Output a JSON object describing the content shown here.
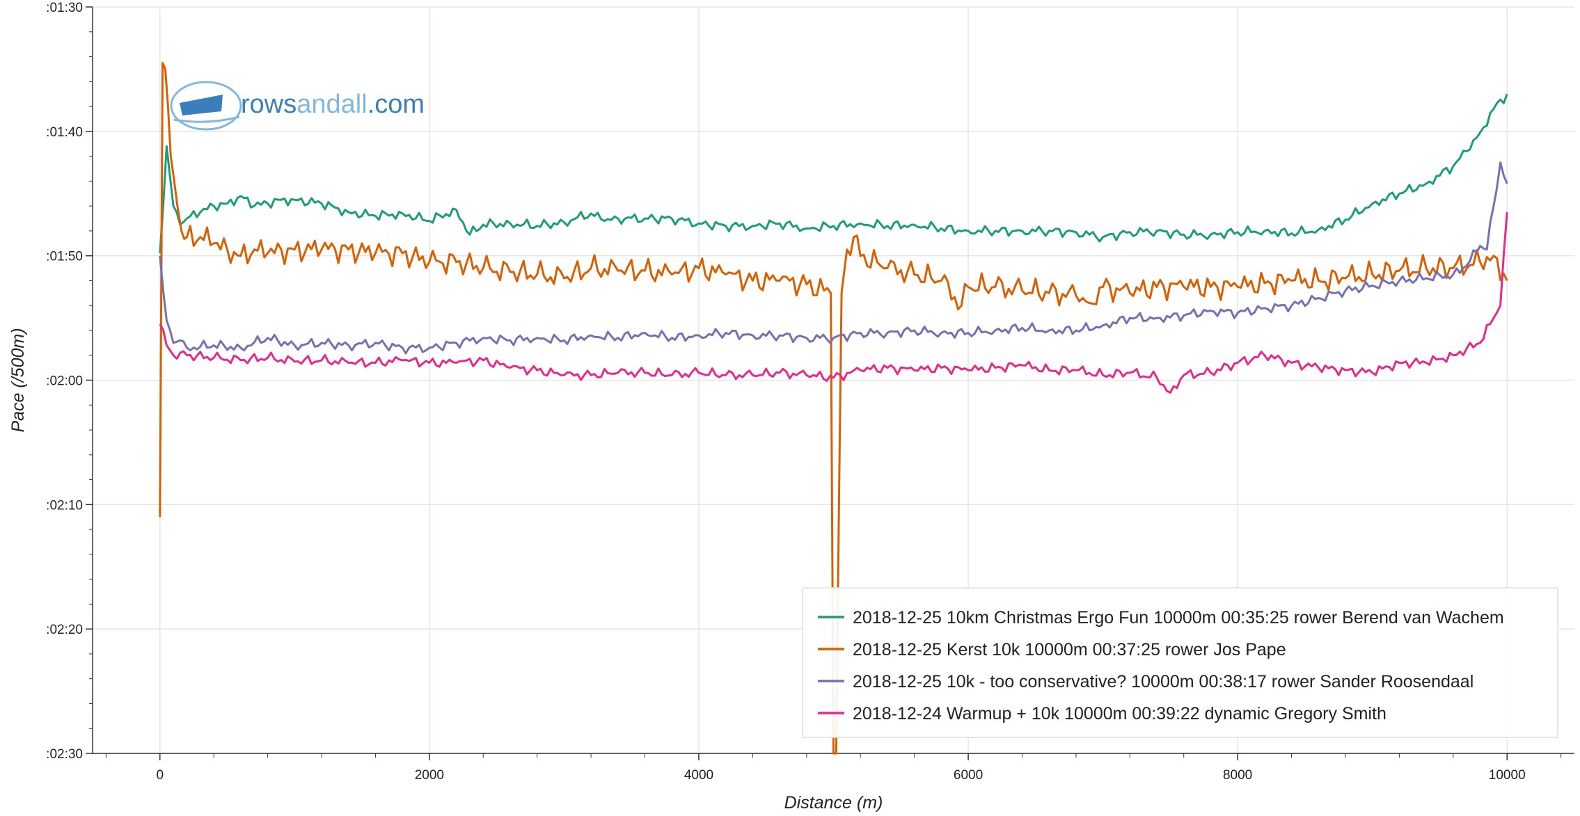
{
  "chart_data": {
    "type": "line",
    "xlabel": "Distance (m)",
    "ylabel": "Pace (/500m)",
    "xlim": [
      -500,
      10500
    ],
    "xticks": [
      0,
      2000,
      4000,
      6000,
      8000,
      10000
    ],
    "ylim_seconds": [
      90,
      150
    ],
    "y_inverted": true,
    "yticks": [
      {
        "seconds": 90,
        "label": ":01:30"
      },
      {
        "seconds": 100,
        "label": ":01:40"
      },
      {
        "seconds": 110,
        "label": ":01:50"
      },
      {
        "seconds": 120,
        "label": ":02:00"
      },
      {
        "seconds": 130,
        "label": ":02:10"
      },
      {
        "seconds": 140,
        "label": ":02:20"
      },
      {
        "seconds": 150,
        "label": ":02:30"
      }
    ],
    "grid": true,
    "legend_position": "bottom-right",
    "series": [
      {
        "name": "2018-12-25 10km Christmas Ergo Fun 10000m 00:35:25 rower Berend van Wachem",
        "color": "#1b9e77",
        "x": [
          0,
          50,
          100,
          150,
          200,
          300,
          400,
          500,
          600,
          700,
          800,
          900,
          1000,
          1200,
          1400,
          1600,
          1800,
          2000,
          2200,
          2300,
          2400,
          2600,
          2800,
          3000,
          3200,
          3300,
          3400,
          3600,
          3800,
          4000,
          4200,
          4400,
          4600,
          4800,
          5000,
          5200,
          5400,
          5600,
          5800,
          6000,
          6200,
          6400,
          6600,
          6800,
          7000,
          7200,
          7400,
          7600,
          7800,
          8000,
          8200,
          8400,
          8600,
          8800,
          9000,
          9200,
          9400,
          9600,
          9700,
          9800,
          9900,
          10000
        ],
        "y": [
          109.8,
          101.2,
          106.0,
          107.5,
          107.0,
          106.5,
          106.0,
          105.8,
          105.2,
          106.0,
          105.8,
          105.5,
          105.5,
          105.8,
          106.5,
          106.8,
          106.6,
          107.2,
          106.3,
          108.3,
          107.5,
          107.4,
          107.6,
          107.3,
          106.6,
          107.2,
          107.0,
          107.0,
          107.0,
          107.4,
          107.6,
          107.6,
          107.4,
          107.8,
          107.6,
          107.4,
          107.6,
          107.5,
          107.8,
          108.0,
          108.0,
          108.0,
          108.0,
          108.1,
          108.5,
          108.1,
          108.0,
          108.3,
          108.3,
          108.1,
          108.0,
          108.2,
          107.9,
          107.1,
          105.8,
          105.0,
          104.2,
          102.8,
          101.6,
          100.1,
          98.2,
          97.0
        ]
      },
      {
        "name": "2018-12-25 Kerst 10k 10000m 00:37:25 rower Jos Pape",
        "color": "#d95f02",
        "x": [
          0,
          20,
          40,
          60,
          80,
          100,
          130,
          160,
          200,
          300,
          400,
          500,
          600,
          700,
          800,
          1000,
          1200,
          1400,
          1600,
          1800,
          2000,
          2200,
          2400,
          2600,
          2800,
          3000,
          3200,
          3400,
          3600,
          3800,
          4000,
          4200,
          4400,
          4600,
          4800,
          4980,
          5000,
          5020,
          5060,
          5100,
          5150,
          5200,
          5400,
          5600,
          5800,
          5950,
          6000,
          6200,
          6400,
          6600,
          6800,
          6900,
          7000,
          7200,
          7400,
          7600,
          7800,
          8000,
          8200,
          8400,
          8600,
          8800,
          9000,
          9200,
          9400,
          9600,
          9800,
          9900,
          10000
        ],
        "y": [
          131.0,
          94.5,
          95.0,
          98.0,
          102.0,
          103.5,
          106.0,
          108.0,
          108.5,
          108.5,
          109.0,
          109.5,
          110.0,
          109.5,
          109.8,
          109.5,
          109.5,
          109.5,
          109.8,
          109.8,
          110.5,
          110.5,
          111.0,
          111.3,
          111.5,
          111.8,
          111.0,
          111.2,
          111.2,
          111.5,
          111.0,
          111.5,
          112.0,
          112.0,
          112.3,
          113.0,
          150.0,
          150.0,
          113.0,
          109.5,
          108.5,
          110.0,
          111.0,
          111.5,
          112.0,
          114.0,
          112.5,
          112.5,
          112.8,
          113.0,
          113.2,
          113.8,
          112.5,
          113.0,
          112.5,
          112.5,
          112.5,
          112.5,
          112.2,
          112.0,
          112.0,
          111.8,
          111.5,
          111.2,
          111.0,
          111.0,
          110.5,
          110.0,
          112.0
        ]
      },
      {
        "name": "2018-12-25 10k - too conservative? 10000m 00:38:17 rower Sander Roosendaal",
        "color": "#7570b3",
        "x": [
          0,
          50,
          100,
          150,
          200,
          400,
          600,
          800,
          1000,
          1200,
          1400,
          1600,
          1800,
          2000,
          2200,
          2400,
          2600,
          2800,
          3000,
          3200,
          3400,
          3600,
          3800,
          4000,
          4200,
          4400,
          4600,
          4800,
          5000,
          5200,
          5400,
          5600,
          5800,
          6000,
          6200,
          6400,
          6600,
          6800,
          7000,
          7200,
          7400,
          7600,
          7800,
          8000,
          8200,
          8400,
          8600,
          8800,
          9000,
          9200,
          9400,
          9600,
          9700,
          9800,
          9850,
          9900,
          9950,
          10000
        ],
        "y": [
          110.0,
          115.2,
          117.0,
          116.8,
          117.4,
          117.2,
          117.4,
          116.6,
          117.2,
          117.0,
          117.2,
          117.0,
          117.4,
          117.4,
          117.0,
          116.6,
          116.8,
          116.6,
          116.8,
          116.4,
          116.6,
          116.2,
          116.6,
          116.4,
          116.2,
          116.4,
          116.4,
          116.6,
          116.6,
          116.2,
          116.2,
          116.0,
          116.2,
          116.2,
          116.0,
          115.8,
          116.0,
          116.0,
          115.6,
          115.0,
          115.0,
          114.8,
          114.4,
          114.6,
          114.2,
          114.0,
          113.4,
          112.8,
          112.4,
          112.0,
          111.8,
          111.5,
          110.8,
          109.2,
          109.5,
          106.0,
          102.5,
          104.2
        ]
      },
      {
        "name": "2018-12-24 Warmup + 10k 10000m 00:39:22 dynamic Gregory Smith",
        "color": "#e7298a",
        "x": [
          0,
          50,
          100,
          150,
          200,
          400,
          600,
          800,
          1000,
          1200,
          1400,
          1600,
          1800,
          2000,
          2200,
          2400,
          2600,
          2800,
          3000,
          3200,
          3400,
          3600,
          3800,
          4000,
          4200,
          4400,
          4600,
          4800,
          5000,
          5200,
          5400,
          5600,
          5800,
          6000,
          6200,
          6400,
          6600,
          6800,
          7000,
          7200,
          7400,
          7500,
          7600,
          7800,
          8000,
          8200,
          8400,
          8600,
          8800,
          9000,
          9200,
          9400,
          9600,
          9800,
          9900,
          9950,
          10000
        ],
        "y": [
          115.5,
          117.2,
          118.0,
          117.8,
          118.0,
          118.2,
          118.4,
          118.2,
          118.5,
          118.4,
          118.6,
          118.6,
          118.4,
          118.6,
          118.6,
          118.4,
          119.0,
          119.2,
          119.6,
          119.6,
          119.4,
          119.4,
          119.6,
          119.4,
          119.6,
          119.6,
          119.4,
          119.6,
          119.8,
          119.2,
          119.0,
          119.2,
          119.0,
          119.2,
          119.0,
          118.8,
          119.2,
          119.2,
          119.6,
          119.4,
          119.8,
          121.0,
          119.6,
          119.4,
          118.6,
          118.0,
          118.6,
          119.0,
          119.2,
          119.4,
          118.6,
          118.6,
          118.0,
          117.0,
          115.0,
          114.0,
          106.5
        ]
      }
    ]
  },
  "watermark": {
    "part1": "rows",
    "part2": "andall",
    "part3": ".com",
    "color_dark": "#3a7fb9",
    "color_light": "#82b8e0"
  }
}
